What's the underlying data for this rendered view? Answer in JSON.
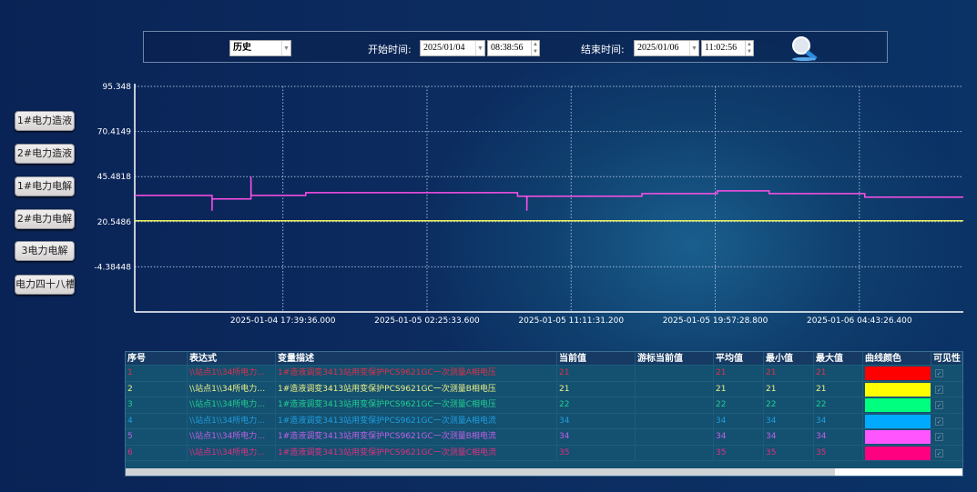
{
  "toolbar": {
    "mode": "历史",
    "start_label": "开始时间:",
    "start_date": "2025/01/04",
    "start_time": "08:38:56",
    "end_label": "结束时间:",
    "end_date": "2025/01/06",
    "end_time": "11:02:56",
    "search_icon": "magnifier-icon"
  },
  "sidebar": {
    "items": [
      {
        "label": "1#电力造液"
      },
      {
        "label": "2#电力造液"
      },
      {
        "label": "1#电力电解"
      },
      {
        "label": "2#电力电解"
      },
      {
        "label": "3电力电解"
      },
      {
        "label": "电力四十八槽"
      }
    ]
  },
  "chart_data": {
    "type": "line",
    "y_ticks": [
      "95.348",
      "70.4149",
      "45.4818",
      "20.5486",
      "-4.38448"
    ],
    "y_tick_values": [
      95.348,
      70.4149,
      45.4818,
      20.5486,
      -4.38448
    ],
    "ylim": [
      -29.3176,
      95.348
    ],
    "xlim": [
      "2025-01-04 08:38:56",
      "2025-01-06 11:02:56"
    ],
    "x_ticks": [
      "2025-01-04 17:39:36.000",
      "2025-01-05 02:25:33.600",
      "2025-01-05 11:11:31.200",
      "2025-01-05 19:57:28.800",
      "2025-01-06 04:43:26.400"
    ],
    "grid": true,
    "series": [
      {
        "color": "#ff4fe8",
        "points": [
          [
            "2025-01-04 08:38:56",
            35.1
          ],
          [
            "2025-01-04 13:21:00",
            35.1
          ],
          [
            "2025-01-04 13:21:00",
            26.6
          ],
          [
            "2025-01-04 13:21:30",
            33.1
          ],
          [
            "2025-01-04 15:43:00",
            33.1
          ],
          [
            "2025-01-04 15:43:00",
            45.5
          ],
          [
            "2025-01-04 15:43:30",
            35.1
          ],
          [
            "2025-01-04 19:03:00",
            35.1
          ],
          [
            "2025-01-04 19:03:00",
            36.6
          ],
          [
            "2025-01-05 07:56:00",
            36.6
          ],
          [
            "2025-01-05 07:56:00",
            34.6
          ],
          [
            "2025-01-05 08:30:00",
            34.6
          ],
          [
            "2025-01-05 08:30:00",
            26.6
          ],
          [
            "2025-01-05 08:30:30",
            34.6
          ],
          [
            "2025-01-05 15:30:00",
            34.6
          ],
          [
            "2025-01-05 15:30:00",
            36.1
          ],
          [
            "2025-01-05 20:05:00",
            36.1
          ],
          [
            "2025-01-05 20:05:00",
            37.6
          ],
          [
            "2025-01-05 23:14:00",
            37.6
          ],
          [
            "2025-01-05 23:14:00",
            36.1
          ],
          [
            "2025-01-06 05:03:00",
            36.1
          ],
          [
            "2025-01-06 05:03:00",
            34.1
          ],
          [
            "2025-01-06 11:02:56",
            34.1
          ]
        ]
      },
      {
        "color": "#e8f060",
        "points": [
          [
            "2025-01-04 08:38:56",
            21.1
          ],
          [
            "2025-01-06 11:02:56",
            21.1
          ]
        ]
      }
    ]
  },
  "table": {
    "headers": [
      "序号",
      "表达式",
      "变量描述",
      "当前值",
      "游标当前值",
      "平均值",
      "最小值",
      "最大值",
      "曲线颜色",
      "可见性"
    ],
    "rows": [
      {
        "no": "1",
        "expr": "\\\\站点1\\\\34所电力…",
        "desc": "1#造液调变3413站用变保护PCS9621GC一次测量A相电压",
        "cur": "21",
        "cursor": "",
        "avg": "21",
        "min": "21",
        "max": "21",
        "color": "#ff0000",
        "text_color": "#e0304a",
        "visible": "✓"
      },
      {
        "no": "2",
        "expr": "\\\\站点1\\\\34所电力…",
        "desc": "1#造液调变3413站用变保护PCS9621GC一次测量B相电压",
        "cur": "21",
        "cursor": "",
        "avg": "21",
        "min": "21",
        "max": "21",
        "color": "#ffff00",
        "text_color": "#eef08a",
        "visible": "✓"
      },
      {
        "no": "3",
        "expr": "\\\\站点1\\\\34所电力…",
        "desc": "1#造液调变3413站用变保护PCS9621GC一次测量C相电压",
        "cur": "22",
        "cursor": "",
        "avg": "22",
        "min": "22",
        "max": "22",
        "color": "#00ff7f",
        "text_color": "#20d090",
        "visible": "✓"
      },
      {
        "no": "4",
        "expr": "\\\\站点1\\\\34所电力…",
        "desc": "1#造液调变3413站用变保护PCS9621GC一次测量A相电流",
        "cur": "34",
        "cursor": "",
        "avg": "34",
        "min": "34",
        "max": "34",
        "color": "#00aaff",
        "text_color": "#1e9ee0",
        "visible": "✓"
      },
      {
        "no": "5",
        "expr": "\\\\站点1\\\\34所电力…",
        "desc": "1#造液调变3413站用变保护PCS9621GC一次测量B相电流",
        "cur": "34",
        "cursor": "",
        "avg": "34",
        "min": "34",
        "max": "34",
        "color": "#ff55ff",
        "text_color": "#c060e8",
        "visible": "✓"
      },
      {
        "no": "6",
        "expr": "\\\\站点1\\\\34所电力…",
        "desc": "1#造液调变3413站用变保护PCS9621GC一次测量C相电流",
        "cur": "35",
        "cursor": "",
        "avg": "35",
        "min": "35",
        "max": "35",
        "color": "#ff0080",
        "text_color": "#e03080",
        "visible": "✓"
      }
    ]
  }
}
